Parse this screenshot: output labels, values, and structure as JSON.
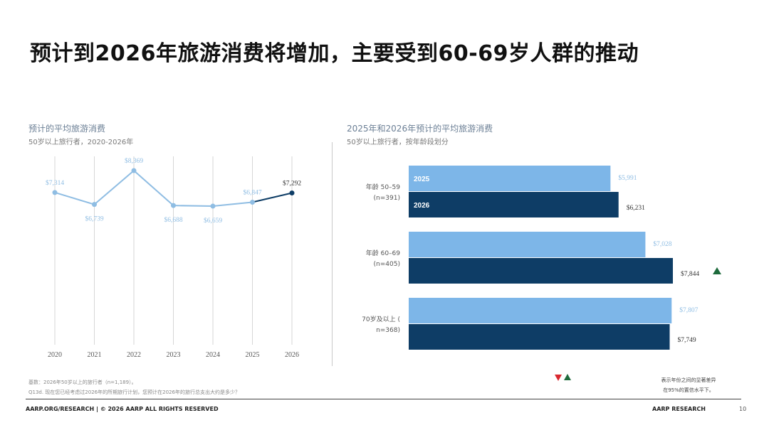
{
  "title": "预计到2026年旅游消费将增加，主要受到60-69岁人群的推动",
  "left_chart": {
    "title": "预计的平均旅游消费",
    "subtitle": "50岁以上旅行者，2020-2026年"
  },
  "right_chart": {
    "title": "2025年和2026年预计的平均旅游消费",
    "subtitle": "50岁以上旅行者，按年龄段划分"
  },
  "chart_data": [
    {
      "type": "line",
      "title": "预计的平均旅游消费",
      "subtitle": "50岁以上旅行者，2020-2026年",
      "x": [
        "2020",
        "2021",
        "2022",
        "2023",
        "2024",
        "2025",
        "2026"
      ],
      "values": [
        7314,
        6739,
        8369,
        6688,
        6659,
        6847,
        7292
      ],
      "data_labels": [
        "$7,314",
        "$6,739",
        "$8,369",
        "$6,688",
        "$6,659",
        "$6,847",
        "$7,292"
      ],
      "grid": "vertical",
      "colors": {
        "line": "#8fbde3",
        "projected": "#0e3d66"
      }
    },
    {
      "type": "bar",
      "orientation": "horizontal",
      "title": "2025年和2026年预计的平均旅游消费",
      "subtitle": "50岁以上旅行者，按年龄段划分",
      "categories": [
        {
          "line1": "年龄 50–59",
          "line2": "(n=391)"
        },
        {
          "line1": "年龄 60–69",
          "line2": "(n=405)"
        },
        {
          "line1": "70岁及以上 (",
          "line2": "n=368)"
        }
      ],
      "series": [
        {
          "name": "2025",
          "values": [
            5991,
            7028,
            7807
          ],
          "labels": [
            "$5,991",
            "$7,028",
            "$7,807"
          ],
          "color": "#7db6e8"
        },
        {
          "name": "2026",
          "values": [
            6231,
            7844,
            7749
          ],
          "labels": [
            "$6,231",
            "$7,844",
            "$7,749"
          ],
          "color": "#0e3d66"
        }
      ],
      "significant_increase": [
        false,
        true,
        false
      ]
    }
  ],
  "footnotes": {
    "base": "基数：2026年50岁以上的旅行者（n=1,189）。",
    "question": "Q13d. 现在您已经考虑过2026年的所期旅行计划，您预计在2026年的旅行总支出大约是多少？"
  },
  "legend_note": {
    "line1": "表示年份之间的显著差异",
    "line2": "在95%的置信水平下。"
  },
  "footer": {
    "left": "AARP.ORG/RESEARCH | © 2026 AARP ALL RIGHTS RESERVED",
    "right": "AARP RESEARCH",
    "page": "10"
  }
}
